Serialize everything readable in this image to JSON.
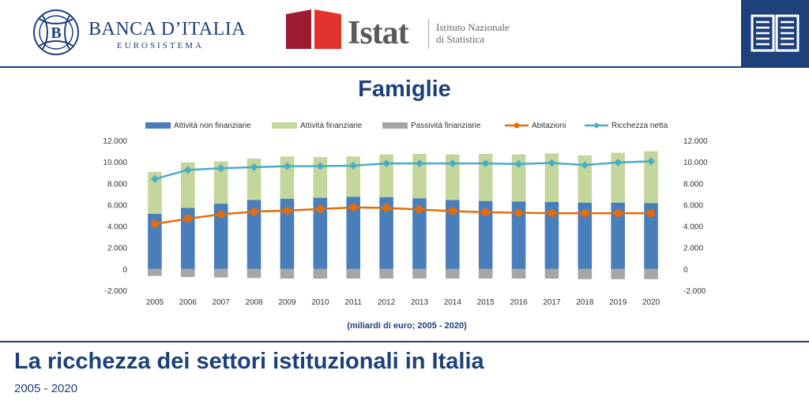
{
  "header": {
    "bank_name": "BANCA D’ITALIA",
    "bank_sub": "EUROSISTEMA",
    "istat_word": "Istat",
    "istat_full_1": "Istituto Nazionale",
    "istat_full_2": "di Statistica",
    "istat_colors": [
      "#9b1b30",
      "#e0332b"
    ],
    "book_icon": "open-book-icon"
  },
  "title": "Famiglie",
  "unit_note": "(miliardi di euro; 2005 - 2020)",
  "footer": {
    "title": "La ricchezza dei settori istituzionali in Italia",
    "subtitle": "2005 - 2020"
  },
  "colors": {
    "brand": "#1d3f7a",
    "non_fin": "#4a7ebb",
    "fin": "#c3d69b",
    "liab": "#a6a6a6",
    "housing": "#e46c0a",
    "net": "#4bacc6"
  },
  "chart_data": {
    "type": "bar",
    "stacked": true,
    "categories": [
      "2005",
      "2006",
      "2007",
      "2008",
      "2009",
      "2010",
      "2011",
      "2012",
      "2013",
      "2014",
      "2015",
      "2016",
      "2017",
      "2018",
      "2019",
      "2020"
    ],
    "ylim": [
      -2000,
      12000
    ],
    "yticks": [
      "-2.000",
      "0",
      "2.000",
      "4.000",
      "6.000",
      "8.000",
      "10.000",
      "12.000"
    ],
    "ytick_values": [
      -2000,
      0,
      2000,
      4000,
      6000,
      8000,
      10000,
      12000
    ],
    "y2ticks": [
      "-2.000",
      "0",
      "2.000",
      "4.000",
      "6.000",
      "8.000",
      "10.000",
      "12.000"
    ],
    "legend_position": "top",
    "grid": false,
    "series": [
      {
        "name": "Attività non finanziarie",
        "kind": "bar",
        "values": [
          5150,
          5700,
          6100,
          6450,
          6550,
          6650,
          6750,
          6700,
          6600,
          6450,
          6350,
          6300,
          6250,
          6200,
          6200,
          6150
        ]
      },
      {
        "name": "Attività finanziarie",
        "kind": "bar",
        "values": [
          3900,
          4250,
          3950,
          3850,
          3950,
          3800,
          3750,
          4000,
          4150,
          4250,
          4400,
          4400,
          4550,
          4400,
          4650,
          4850
        ]
      },
      {
        "name": "Passività finanziarie",
        "kind": "bar",
        "values": [
          -650,
          -750,
          -800,
          -850,
          -900,
          -900,
          -900,
          -900,
          -900,
          -900,
          -900,
          -900,
          -900,
          -950,
          -950,
          -950
        ]
      },
      {
        "name": "Abitazioni",
        "kind": "line",
        "values": [
          4200,
          4700,
          5100,
          5350,
          5450,
          5600,
          5750,
          5700,
          5550,
          5400,
          5300,
          5250,
          5200,
          5200,
          5200,
          5200
        ]
      },
      {
        "name": "Ricchezza netta",
        "kind": "line",
        "values": [
          8400,
          9250,
          9400,
          9500,
          9600,
          9600,
          9650,
          9850,
          9850,
          9850,
          9850,
          9800,
          9900,
          9700,
          9950,
          10050
        ]
      }
    ]
  }
}
